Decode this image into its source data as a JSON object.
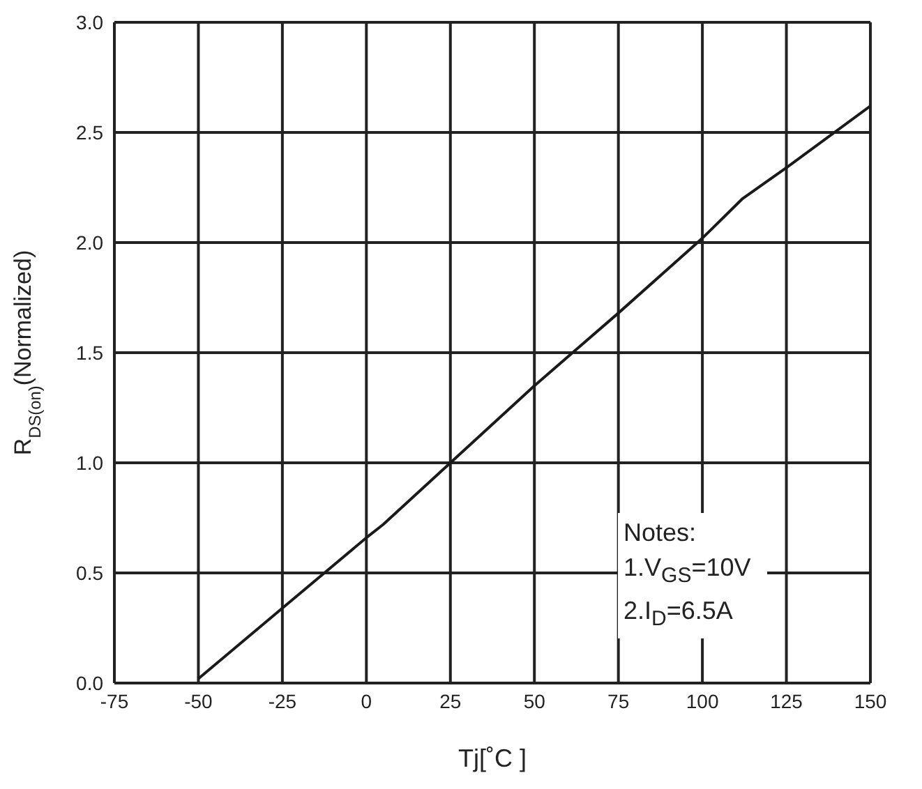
{
  "chart_data": {
    "type": "line",
    "xlabel": "Tj[˚C ]",
    "ylabel": "R$_{DS(on)}$(Normalized)",
    "x": [
      -50,
      -25,
      0,
      5,
      25,
      50,
      75,
      100,
      112,
      125,
      150
    ],
    "series": [
      {
        "color": "#1a1a1a",
        "values": [
          0.02,
          0.34,
          0.66,
          0.72,
          1.0,
          1.35,
          1.68,
          2.02,
          2.2,
          2.34,
          2.62
        ]
      }
    ],
    "xlim": [
      -75,
      150
    ],
    "xticks": [
      -75,
      -50,
      -25,
      0,
      25,
      50,
      75,
      100,
      125,
      150
    ],
    "ylim": [
      0,
      3
    ],
    "yticks": [
      {
        "value": 0,
        "label": "0.0"
      },
      {
        "value": 0.5,
        "label": "0.5"
      },
      {
        "value": 1,
        "label": "1.0"
      },
      {
        "value": 1.5,
        "label": "1.5"
      },
      {
        "value": 2,
        "label": "2.0"
      },
      {
        "value": 2.5,
        "label": "2.5"
      },
      {
        "value": 3,
        "label": "3.0"
      }
    ],
    "grid": true,
    "marker": "none",
    "line_style": "solid",
    "annotations": [
      "Notes:",
      "1.V$_{GS}$=10V",
      "2.I$_{D}$=6.5A"
    ]
  }
}
